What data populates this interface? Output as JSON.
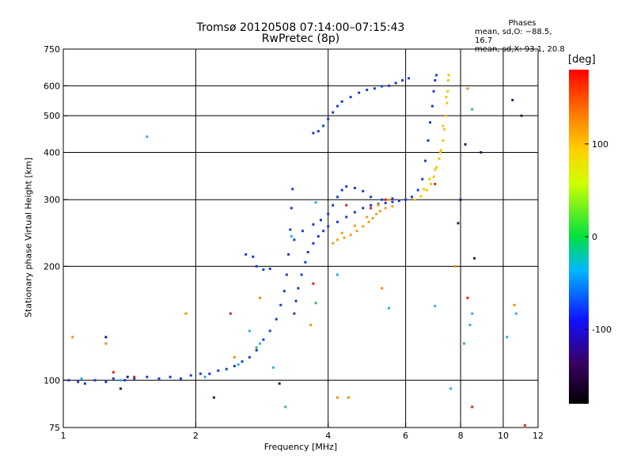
{
  "chart_data": {
    "type": "scatter",
    "title": "Tromsø 20120508 07:14:00–07:15:43",
    "subtitle": "RwPretec (8p)",
    "xlabel": "Frequency [MHz]",
    "ylabel": "Stationary phase Virtual Height [km]",
    "x_scale": "log",
    "y_scale": "log",
    "xlim": [
      1,
      12
    ],
    "ylim": [
      75,
      750
    ],
    "grid": true,
    "x_ticks": [
      1,
      2,
      4,
      6,
      8,
      10,
      12
    ],
    "y_ticks": [
      75,
      100,
      200,
      300,
      400,
      500,
      600,
      750
    ],
    "phases_header": "Phases",
    "phase_stats": [
      "mean, sd,O: −88.5, 16.7",
      "mean, sd,X:  93.1, 20.8"
    ],
    "colorbar": {
      "label": "[deg]",
      "ticks": [
        100,
        0,
        -100
      ],
      "range": [
        -180,
        180
      ]
    },
    "series": [
      {
        "color": "#1a3ad8",
        "points": [
          [
            1.03,
            100
          ],
          [
            1.08,
            99
          ],
          [
            1.12,
            98
          ],
          [
            1.18,
            100
          ],
          [
            1.25,
            99
          ],
          [
            1.3,
            101
          ],
          [
            1.38,
            100
          ],
          [
            1.45,
            101
          ],
          [
            1.55,
            102
          ],
          [
            1.65,
            101
          ],
          [
            1.75,
            102
          ],
          [
            1.85,
            101
          ],
          [
            1.95,
            103
          ],
          [
            2.05,
            104
          ],
          [
            2.15,
            104
          ],
          [
            2.25,
            106
          ],
          [
            2.35,
            107
          ],
          [
            2.45,
            109
          ],
          [
            2.55,
            112
          ],
          [
            2.65,
            115
          ],
          [
            2.75,
            120
          ],
          [
            2.85,
            128
          ],
          [
            2.95,
            135
          ],
          [
            3.05,
            145
          ],
          [
            3.12,
            158
          ],
          [
            3.18,
            172
          ],
          [
            3.22,
            190
          ],
          [
            3.25,
            215
          ],
          [
            3.28,
            250
          ],
          [
            3.3,
            285
          ],
          [
            3.32,
            320
          ],
          [
            3.35,
            150
          ],
          [
            3.38,
            162
          ],
          [
            3.42,
            175
          ],
          [
            3.48,
            190
          ],
          [
            3.55,
            205
          ],
          [
            3.6,
            218
          ],
          [
            3.7,
            230
          ],
          [
            3.8,
            240
          ],
          [
            3.9,
            248
          ],
          [
            4.0,
            255
          ],
          [
            4.2,
            262
          ],
          [
            4.4,
            270
          ],
          [
            4.6,
            278
          ],
          [
            4.8,
            285
          ],
          [
            5.0,
            290
          ],
          [
            5.2,
            292
          ],
          [
            5.4,
            294
          ],
          [
            5.6,
            296
          ],
          [
            5.8,
            298
          ],
          [
            6.0,
            300
          ],
          [
            6.2,
            305
          ],
          [
            6.4,
            318
          ],
          [
            6.55,
            340
          ],
          [
            6.65,
            380
          ],
          [
            6.75,
            430
          ],
          [
            6.82,
            480
          ],
          [
            6.9,
            530
          ],
          [
            6.95,
            580
          ],
          [
            7.0,
            620
          ],
          [
            7.05,
            640
          ],
          [
            3.35,
            235
          ],
          [
            3.5,
            248
          ],
          [
            3.7,
            258
          ],
          [
            3.85,
            265
          ],
          [
            4.0,
            275
          ],
          [
            4.1,
            290
          ],
          [
            4.2,
            305
          ],
          [
            4.3,
            318
          ],
          [
            4.4,
            325
          ],
          [
            4.6,
            322
          ],
          [
            4.8,
            316
          ],
          [
            5.0,
            305
          ],
          [
            5.3,
            300
          ],
          [
            5.6,
            302
          ],
          [
            3.7,
            450
          ],
          [
            3.8,
            455
          ],
          [
            3.9,
            470
          ],
          [
            4.0,
            490
          ],
          [
            4.1,
            510
          ],
          [
            4.2,
            530
          ],
          [
            4.3,
            545
          ],
          [
            4.5,
            560
          ],
          [
            4.7,
            575
          ],
          [
            4.9,
            585
          ],
          [
            5.1,
            590
          ],
          [
            5.3,
            598
          ],
          [
            5.5,
            600
          ],
          [
            5.7,
            610
          ],
          [
            5.9,
            620
          ],
          [
            6.1,
            628
          ],
          [
            2.6,
            215
          ],
          [
            2.7,
            212
          ],
          [
            2.75,
            200
          ],
          [
            2.85,
            196
          ],
          [
            2.95,
            197
          ]
        ]
      },
      {
        "color": "#f0c800",
        "points": [
          [
            6.3,
            300
          ],
          [
            6.5,
            306
          ],
          [
            6.7,
            318
          ],
          [
            6.85,
            330
          ],
          [
            6.95,
            345
          ],
          [
            7.05,
            365
          ],
          [
            7.15,
            385
          ],
          [
            7.22,
            405
          ],
          [
            7.3,
            430
          ],
          [
            7.35,
            460
          ],
          [
            7.4,
            500
          ],
          [
            7.45,
            540
          ],
          [
            7.48,
            580
          ],
          [
            7.5,
            620
          ],
          [
            7.52,
            640
          ],
          [
            6.6,
            320
          ],
          [
            6.8,
            340
          ],
          [
            7.0,
            360
          ],
          [
            7.2,
            400
          ],
          [
            7.3,
            470
          ],
          [
            7.42,
            560
          ]
        ]
      },
      {
        "color": "#ff9c1a",
        "points": [
          [
            4.1,
            230
          ],
          [
            4.2,
            235
          ],
          [
            4.35,
            238
          ],
          [
            4.5,
            242
          ],
          [
            4.65,
            248
          ],
          [
            4.8,
            255
          ],
          [
            4.95,
            262
          ],
          [
            5.05,
            268
          ],
          [
            5.15,
            275
          ],
          [
            5.25,
            280
          ],
          [
            5.4,
            285
          ],
          [
            5.6,
            288
          ],
          [
            4.3,
            245
          ],
          [
            4.6,
            256
          ],
          [
            4.9,
            270
          ],
          [
            5.2,
            290
          ],
          [
            5.5,
            300
          ]
        ]
      },
      {
        "color": "#e02020",
        "points": [
          [
            1.3,
            105
          ],
          [
            1.45,
            102
          ],
          [
            2.4,
            150
          ],
          [
            3.7,
            180
          ],
          [
            4.4,
            290
          ],
          [
            5.4,
            300
          ],
          [
            7.0,
            330
          ],
          [
            8.3,
            165
          ],
          [
            8.5,
            85
          ],
          [
            11.2,
            76
          ],
          [
            5.0,
            285
          ]
        ]
      },
      {
        "color": "#2ab0e0",
        "points": [
          [
            1.1,
            101
          ],
          [
            1.35,
            100
          ],
          [
            1.55,
            440
          ],
          [
            2.1,
            102
          ],
          [
            2.5,
            110
          ],
          [
            2.65,
            135
          ],
          [
            2.8,
            125
          ],
          [
            3.0,
            108
          ],
          [
            3.3,
            240
          ],
          [
            3.75,
            295
          ],
          [
            4.2,
            190
          ],
          [
            5.5,
            155
          ],
          [
            7.0,
            157
          ],
          [
            7.6,
            95
          ],
          [
            8.4,
            140
          ],
          [
            8.5,
            150
          ],
          [
            10.2,
            130
          ],
          [
            10.7,
            150
          ]
        ]
      },
      {
        "color": "#ff8800",
        "points": [
          [
            1.05,
            130
          ],
          [
            1.25,
            125
          ],
          [
            1.9,
            150
          ],
          [
            2.45,
            115
          ],
          [
            2.8,
            165
          ],
          [
            3.65,
            140
          ],
          [
            4.2,
            90
          ],
          [
            4.45,
            90
          ],
          [
            5.3,
            175
          ],
          [
            7.8,
            200
          ],
          [
            8.3,
            590
          ],
          [
            10.6,
            158
          ]
        ]
      },
      {
        "color": "#30c060",
        "points": [
          [
            2.75,
            122
          ],
          [
            3.2,
            85
          ],
          [
            3.75,
            160
          ],
          [
            8.15,
            125
          ],
          [
            8.5,
            520
          ]
        ]
      },
      {
        "color": "#202060",
        "points": [
          [
            1.25,
            130
          ],
          [
            1.35,
            95
          ],
          [
            1.4,
            102
          ],
          [
            2.2,
            90
          ],
          [
            3.1,
            98
          ],
          [
            7.9,
            260
          ],
          [
            8.0,
            300
          ],
          [
            8.2,
            420
          ],
          [
            8.6,
            210
          ],
          [
            8.9,
            400
          ],
          [
            10.5,
            550
          ],
          [
            11.0,
            500
          ]
        ]
      }
    ]
  }
}
